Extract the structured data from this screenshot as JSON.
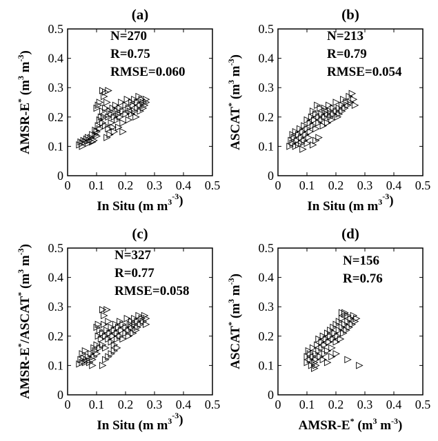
{
  "chart_data": [
    {
      "type": "scatter",
      "panel": "(a)",
      "xlabel": {
        "pre": "In Situ (m",
        "sup1": "3",
        "mid": " m",
        "sup2": "-3",
        "post": ")"
      },
      "ylabel": {
        "pre": "AMSR-E",
        "star": "*",
        "mid": " (m",
        "sup1": "3",
        "mid2": " m",
        "sup2": "-3",
        "post": ")"
      },
      "xlim": [
        0,
        0.5
      ],
      "ylim": [
        0,
        0.5
      ],
      "xticks": [
        "0",
        "0.1",
        "0.2",
        "0.3",
        "0.4",
        "0.5"
      ],
      "yticks": [
        "0",
        "0.1",
        "0.2",
        "0.3",
        "0.4",
        "0.5"
      ],
      "stats": [
        "N=270",
        "R=0.75",
        "RMSE=0.060"
      ],
      "marker": "triangle-right",
      "points": [
        [
          0.04,
          0.105
        ],
        [
          0.045,
          0.115
        ],
        [
          0.05,
          0.11
        ],
        [
          0.055,
          0.12
        ],
        [
          0.05,
          0.1
        ],
        [
          0.06,
          0.115
        ],
        [
          0.065,
          0.125
        ],
        [
          0.07,
          0.11
        ],
        [
          0.075,
          0.12
        ],
        [
          0.08,
          0.13
        ],
        [
          0.085,
          0.115
        ],
        [
          0.09,
          0.12
        ],
        [
          0.095,
          0.14
        ],
        [
          0.1,
          0.135
        ],
        [
          0.1,
          0.15
        ],
        [
          0.105,
          0.17
        ],
        [
          0.11,
          0.16
        ],
        [
          0.11,
          0.19
        ],
        [
          0.115,
          0.2
        ],
        [
          0.12,
          0.22
        ],
        [
          0.1,
          0.23
        ],
        [
          0.105,
          0.24
        ],
        [
          0.11,
          0.25
        ],
        [
          0.12,
          0.18
        ],
        [
          0.125,
          0.2
        ],
        [
          0.13,
          0.17
        ],
        [
          0.13,
          0.23
        ],
        [
          0.135,
          0.25
        ],
        [
          0.14,
          0.2
        ],
        [
          0.14,
          0.16
        ],
        [
          0.145,
          0.22
        ],
        [
          0.15,
          0.21
        ],
        [
          0.15,
          0.18
        ],
        [
          0.155,
          0.23
        ],
        [
          0.16,
          0.2
        ],
        [
          0.16,
          0.15
        ],
        [
          0.165,
          0.24
        ],
        [
          0.17,
          0.22
        ],
        [
          0.17,
          0.19
        ],
        [
          0.175,
          0.21
        ],
        [
          0.18,
          0.23
        ],
        [
          0.18,
          0.2
        ],
        [
          0.185,
          0.25
        ],
        [
          0.19,
          0.22
        ],
        [
          0.19,
          0.18
        ],
        [
          0.2,
          0.24
        ],
        [
          0.2,
          0.21
        ],
        [
          0.205,
          0.26
        ],
        [
          0.21,
          0.23
        ],
        [
          0.21,
          0.19
        ],
        [
          0.215,
          0.22
        ],
        [
          0.22,
          0.25
        ],
        [
          0.22,
          0.21
        ],
        [
          0.225,
          0.24
        ],
        [
          0.23,
          0.26
        ],
        [
          0.23,
          0.22
        ],
        [
          0.235,
          0.2
        ],
        [
          0.24,
          0.25
        ],
        [
          0.24,
          0.23
        ],
        [
          0.245,
          0.27
        ],
        [
          0.25,
          0.24
        ],
        [
          0.25,
          0.22
        ],
        [
          0.255,
          0.26
        ],
        [
          0.26,
          0.25
        ],
        [
          0.26,
          0.23
        ],
        [
          0.265,
          0.24
        ],
        [
          0.27,
          0.26
        ],
        [
          0.27,
          0.25
        ],
        [
          0.12,
          0.29
        ],
        [
          0.13,
          0.285
        ],
        [
          0.14,
          0.29
        ],
        [
          0.125,
          0.27
        ],
        [
          0.095,
          0.155
        ],
        [
          0.085,
          0.14
        ],
        [
          0.07,
          0.13
        ],
        [
          0.135,
          0.13
        ],
        [
          0.145,
          0.14
        ],
        [
          0.155,
          0.165
        ],
        [
          0.175,
          0.165
        ],
        [
          0.19,
          0.15
        ]
      ]
    },
    {
      "type": "scatter",
      "panel": "(b)",
      "xlabel": {
        "pre": "In Situ (m",
        "sup1": "3",
        "mid": " m",
        "sup2": "-3",
        "post": ")"
      },
      "ylabel": {
        "pre": "ASCAT",
        "star": "*",
        "mid": " (m",
        "sup1": "3",
        "mid2": " m",
        "sup2": "-3",
        "post": ")"
      },
      "xlim": [
        0,
        0.5
      ],
      "ylim": [
        0,
        0.5
      ],
      "xticks": [
        "0",
        "0.1",
        "0.2",
        "0.3",
        "0.4",
        "0.5"
      ],
      "yticks": [
        "0",
        "0.1",
        "0.2",
        "0.3",
        "0.4",
        "0.5"
      ],
      "stats": [
        "N=213",
        "R=0.79",
        "RMSE=0.054"
      ],
      "marker": "triangle-right",
      "points": [
        [
          0.04,
          0.1
        ],
        [
          0.045,
          0.12
        ],
        [
          0.05,
          0.14
        ],
        [
          0.05,
          0.11
        ],
        [
          0.055,
          0.13
        ],
        [
          0.06,
          0.15
        ],
        [
          0.06,
          0.1
        ],
        [
          0.065,
          0.12
        ],
        [
          0.07,
          0.14
        ],
        [
          0.075,
          0.16
        ],
        [
          0.08,
          0.11
        ],
        [
          0.08,
          0.13
        ],
        [
          0.085,
          0.15
        ],
        [
          0.09,
          0.17
        ],
        [
          0.09,
          0.12
        ],
        [
          0.095,
          0.14
        ],
        [
          0.1,
          0.16
        ],
        [
          0.1,
          0.19
        ],
        [
          0.105,
          0.13
        ],
        [
          0.11,
          0.15
        ],
        [
          0.11,
          0.18
        ],
        [
          0.115,
          0.2
        ],
        [
          0.12,
          0.17
        ],
        [
          0.12,
          0.22
        ],
        [
          0.125,
          0.19
        ],
        [
          0.13,
          0.16
        ],
        [
          0.13,
          0.21
        ],
        [
          0.135,
          0.24
        ],
        [
          0.14,
          0.18
        ],
        [
          0.14,
          0.2
        ],
        [
          0.145,
          0.23
        ],
        [
          0.15,
          0.19
        ],
        [
          0.15,
          0.21
        ],
        [
          0.155,
          0.17
        ],
        [
          0.16,
          0.2
        ],
        [
          0.16,
          0.23
        ],
        [
          0.165,
          0.22
        ],
        [
          0.17,
          0.18
        ],
        [
          0.17,
          0.21
        ],
        [
          0.175,
          0.24
        ],
        [
          0.18,
          0.2
        ],
        [
          0.18,
          0.22
        ],
        [
          0.185,
          0.19
        ],
        [
          0.19,
          0.23
        ],
        [
          0.19,
          0.21
        ],
        [
          0.2,
          0.22
        ],
        [
          0.2,
          0.25
        ],
        [
          0.205,
          0.2
        ],
        [
          0.21,
          0.23
        ],
        [
          0.21,
          0.21
        ],
        [
          0.22,
          0.24
        ],
        [
          0.22,
          0.22
        ],
        [
          0.225,
          0.26
        ],
        [
          0.23,
          0.23
        ],
        [
          0.235,
          0.25
        ],
        [
          0.24,
          0.24
        ],
        [
          0.245,
          0.27
        ],
        [
          0.25,
          0.25
        ],
        [
          0.255,
          0.28
        ],
        [
          0.26,
          0.26
        ],
        [
          0.265,
          0.24
        ],
        [
          0.13,
          0.12
        ],
        [
          0.12,
          0.105
        ],
        [
          0.14,
          0.13
        ],
        [
          0.085,
          0.09
        ],
        [
          0.07,
          0.105
        ],
        [
          0.1,
          0.11
        ]
      ]
    },
    {
      "type": "scatter",
      "panel": "(c)",
      "xlabel": {
        "pre": "In Situ (m",
        "sup1": "3",
        "mid": " m",
        "sup2": "-3",
        "post": ")"
      },
      "ylabel": {
        "pre": "AMSR-E",
        "star": "*",
        "mid": "/ASCAT",
        "star2": "*",
        "mid1b": " (m",
        "sup1": "3",
        "mid2": " m",
        "sup2": "-3",
        "post": ")"
      },
      "xlim": [
        0,
        0.5
      ],
      "ylim": [
        0,
        0.5
      ],
      "xticks": [
        "0",
        "0.1",
        "0.2",
        "0.3",
        "0.4",
        "0.5"
      ],
      "yticks": [
        "0",
        "0.1",
        "0.2",
        "0.3",
        "0.4",
        "0.5"
      ],
      "stats": [
        "N=327",
        "R=0.77",
        "RMSE=0.058"
      ],
      "marker": "triangle-right",
      "points": [
        [
          0.04,
          0.105
        ],
        [
          0.045,
          0.12
        ],
        [
          0.05,
          0.11
        ],
        [
          0.05,
          0.14
        ],
        [
          0.055,
          0.125
        ],
        [
          0.06,
          0.11
        ],
        [
          0.06,
          0.15
        ],
        [
          0.065,
          0.12
        ],
        [
          0.07,
          0.13
        ],
        [
          0.075,
          0.11
        ],
        [
          0.08,
          0.14
        ],
        [
          0.085,
          0.12
        ],
        [
          0.09,
          0.16
        ],
        [
          0.09,
          0.13
        ],
        [
          0.095,
          0.15
        ],
        [
          0.1,
          0.17
        ],
        [
          0.1,
          0.14
        ],
        [
          0.105,
          0.2
        ],
        [
          0.11,
          0.16
        ],
        [
          0.11,
          0.22
        ],
        [
          0.1,
          0.23
        ],
        [
          0.105,
          0.24
        ],
        [
          0.115,
          0.19
        ],
        [
          0.12,
          0.21
        ],
        [
          0.12,
          0.17
        ],
        [
          0.125,
          0.24
        ],
        [
          0.13,
          0.2
        ],
        [
          0.13,
          0.16
        ],
        [
          0.135,
          0.22
        ],
        [
          0.14,
          0.19
        ],
        [
          0.14,
          0.25
        ],
        [
          0.145,
          0.21
        ],
        [
          0.15,
          0.18
        ],
        [
          0.15,
          0.23
        ],
        [
          0.155,
          0.2
        ],
        [
          0.16,
          0.22
        ],
        [
          0.16,
          0.17
        ],
        [
          0.165,
          0.24
        ],
        [
          0.17,
          0.21
        ],
        [
          0.17,
          0.19
        ],
        [
          0.175,
          0.23
        ],
        [
          0.18,
          0.2
        ],
        [
          0.18,
          0.25
        ],
        [
          0.185,
          0.22
        ],
        [
          0.19,
          0.19
        ],
        [
          0.19,
          0.24
        ],
        [
          0.2,
          0.21
        ],
        [
          0.2,
          0.23
        ],
        [
          0.205,
          0.26
        ],
        [
          0.21,
          0.22
        ],
        [
          0.21,
          0.2
        ],
        [
          0.215,
          0.24
        ],
        [
          0.22,
          0.23
        ],
        [
          0.22,
          0.25
        ],
        [
          0.225,
          0.21
        ],
        [
          0.23,
          0.24
        ],
        [
          0.23,
          0.26
        ],
        [
          0.235,
          0.22
        ],
        [
          0.24,
          0.25
        ],
        [
          0.24,
          0.23
        ],
        [
          0.245,
          0.27
        ],
        [
          0.25,
          0.24
        ],
        [
          0.255,
          0.26
        ],
        [
          0.26,
          0.25
        ],
        [
          0.265,
          0.27
        ],
        [
          0.27,
          0.24
        ],
        [
          0.27,
          0.26
        ],
        [
          0.12,
          0.29
        ],
        [
          0.135,
          0.29
        ],
        [
          0.125,
          0.27
        ],
        [
          0.13,
          0.12
        ],
        [
          0.14,
          0.13
        ],
        [
          0.15,
          0.14
        ],
        [
          0.16,
          0.15
        ],
        [
          0.17,
          0.16
        ],
        [
          0.12,
          0.1
        ],
        [
          0.085,
          0.1
        ]
      ]
    },
    {
      "type": "scatter",
      "panel": "(d)",
      "xlabel": {
        "pre": "AMSR-E",
        "star": "*",
        "mid": " (m",
        "sup1": "3",
        "mid2": " m",
        "sup2": "-3",
        "post": ")"
      },
      "ylabel": {
        "pre": "ASCAT",
        "star": "*",
        "mid": " (m",
        "sup1": "3",
        "mid2": " m",
        "sup2": "-3",
        "post": ")"
      },
      "xlim": [
        0,
        0.5
      ],
      "ylim": [
        0,
        0.5
      ],
      "xticks": [
        "0",
        "0.1",
        "0.2",
        "0.3",
        "0.4",
        "0.5"
      ],
      "yticks": [
        "0",
        "0.1",
        "0.2",
        "0.3",
        "0.4",
        "0.5"
      ],
      "stats": [
        "N=156",
        "R=0.76"
      ],
      "marker": "triangle-right",
      "points": [
        [
          0.1,
          0.11
        ],
        [
          0.1,
          0.13
        ],
        [
          0.105,
          0.15
        ],
        [
          0.11,
          0.12
        ],
        [
          0.11,
          0.14
        ],
        [
          0.115,
          0.1
        ],
        [
          0.12,
          0.13
        ],
        [
          0.12,
          0.16
        ],
        [
          0.125,
          0.11
        ],
        [
          0.13,
          0.14
        ],
        [
          0.13,
          0.12
        ],
        [
          0.135,
          0.17
        ],
        [
          0.14,
          0.15
        ],
        [
          0.14,
          0.19
        ],
        [
          0.145,
          0.13
        ],
        [
          0.15,
          0.16
        ],
        [
          0.15,
          0.18
        ],
        [
          0.155,
          0.2
        ],
        [
          0.16,
          0.14
        ],
        [
          0.16,
          0.17
        ],
        [
          0.165,
          0.19
        ],
        [
          0.17,
          0.21
        ],
        [
          0.17,
          0.15
        ],
        [
          0.175,
          0.18
        ],
        [
          0.18,
          0.2
        ],
        [
          0.18,
          0.22
        ],
        [
          0.185,
          0.16
        ],
        [
          0.19,
          0.19
        ],
        [
          0.19,
          0.23
        ],
        [
          0.195,
          0.21
        ],
        [
          0.2,
          0.18
        ],
        [
          0.2,
          0.24
        ],
        [
          0.205,
          0.2
        ],
        [
          0.21,
          0.22
        ],
        [
          0.21,
          0.25
        ],
        [
          0.215,
          0.19
        ],
        [
          0.22,
          0.23
        ],
        [
          0.22,
          0.26
        ],
        [
          0.225,
          0.21
        ],
        [
          0.23,
          0.28
        ],
        [
          0.23,
          0.24
        ],
        [
          0.235,
          0.22
        ],
        [
          0.24,
          0.27
        ],
        [
          0.24,
          0.25
        ],
        [
          0.245,
          0.23
        ],
        [
          0.25,
          0.26
        ],
        [
          0.255,
          0.24
        ],
        [
          0.26,
          0.27
        ],
        [
          0.265,
          0.25
        ],
        [
          0.27,
          0.26
        ],
        [
          0.28,
          0.1
        ],
        [
          0.24,
          0.12
        ],
        [
          0.2,
          0.14
        ],
        [
          0.13,
          0.1
        ],
        [
          0.125,
          0.09
        ],
        [
          0.22,
          0.28
        ],
        [
          0.23,
          0.275
        ],
        [
          0.185,
          0.13
        ],
        [
          0.17,
          0.11
        ],
        [
          0.155,
          0.12
        ]
      ]
    }
  ]
}
